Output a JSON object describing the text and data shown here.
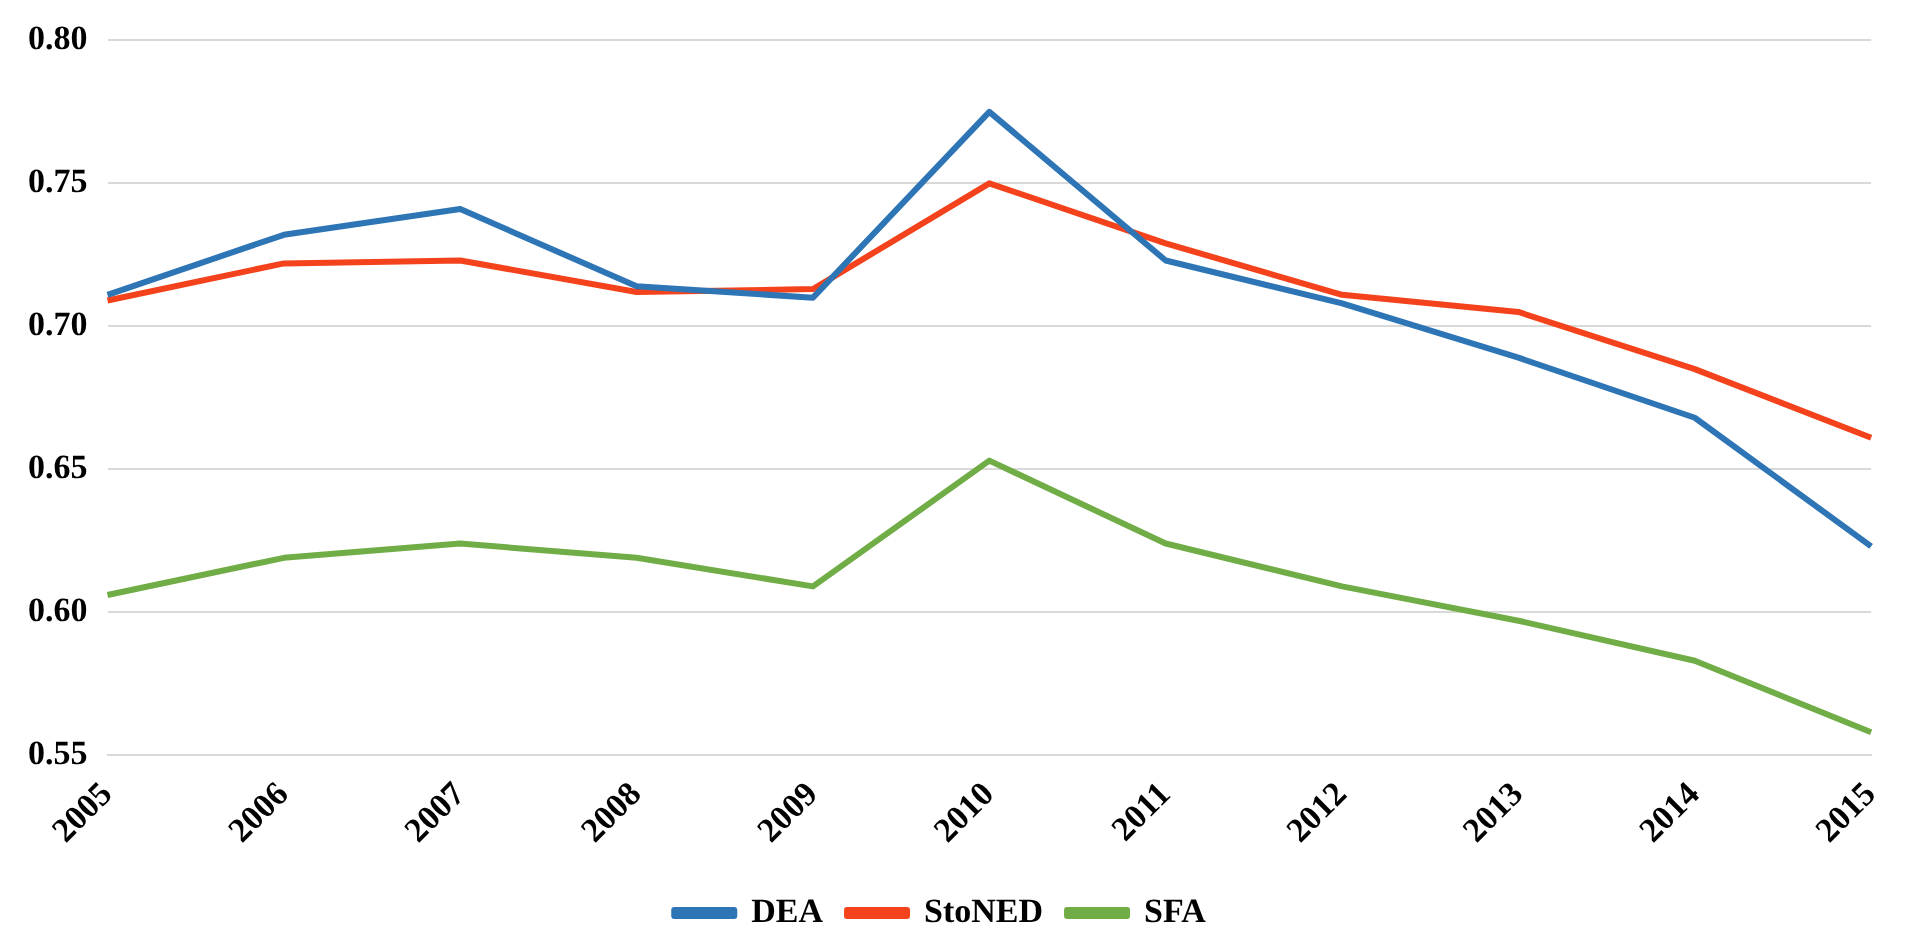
{
  "chart_data": {
    "type": "line",
    "categories": [
      "2005",
      "2006",
      "2007",
      "2008",
      "2009",
      "2010",
      "2011",
      "2012",
      "2013",
      "2014",
      "2015"
    ],
    "series": [
      {
        "name": "DEA",
        "color": "#2e75b6",
        "values": [
          0.711,
          0.732,
          0.741,
          0.714,
          0.71,
          0.775,
          0.723,
          0.708,
          0.689,
          0.668,
          0.623
        ]
      },
      {
        "name": "StoNED",
        "color": "#f4431c",
        "values": [
          0.709,
          0.722,
          0.723,
          0.712,
          0.713,
          0.75,
          0.729,
          0.711,
          0.705,
          0.685,
          0.661
        ]
      },
      {
        "name": "SFA",
        "color": "#70ad47",
        "values": [
          0.606,
          0.619,
          0.624,
          0.619,
          0.609,
          0.653,
          0.624,
          0.609,
          0.597,
          0.583,
          0.558
        ]
      }
    ],
    "ylim": [
      0.55,
      0.8
    ],
    "yticks": [
      0.55,
      {
        "value": 0.6,
        "label": "0.60"
      },
      0.65,
      {
        "value": 0.7,
        "label": "0.70"
      },
      0.75,
      {
        "value": 0.8,
        "label": "0.80"
      }
    ],
    "grid": "y",
    "legend": "bottom",
    "marker": "none",
    "line_style": "solid"
  }
}
